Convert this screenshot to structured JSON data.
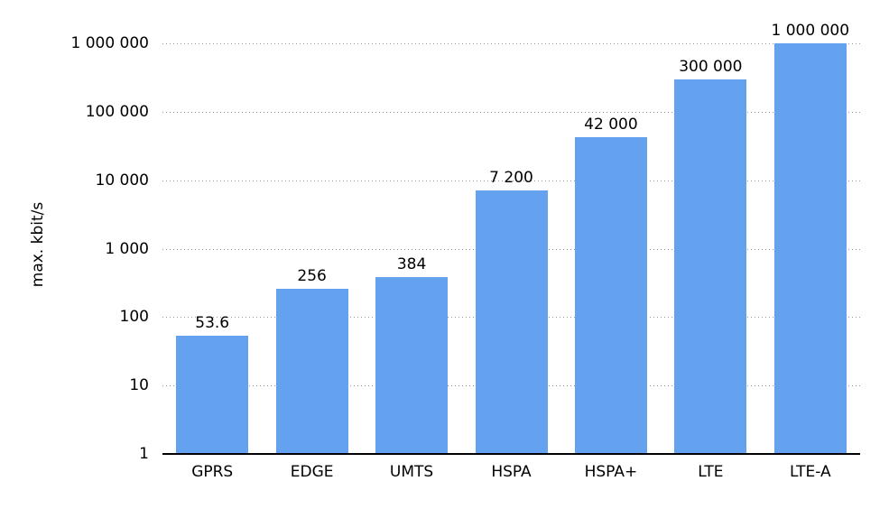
{
  "chart_data": {
    "type": "bar",
    "title": "",
    "xlabel": "",
    "ylabel": "max. kbit/s",
    "yscale": "log",
    "ylim": [
      1,
      1000000
    ],
    "grid": "horizontal-dotted",
    "legend_position": "none",
    "categories": [
      "GPRS",
      "EDGE",
      "UMTS",
      "HSPA",
      "HSPA+",
      "LTE",
      "LTE-A"
    ],
    "values": [
      53.6,
      256,
      384,
      7200,
      42000,
      300000,
      1000000
    ],
    "value_labels": [
      "53.6",
      "256",
      "384",
      "7 200",
      "42 000",
      "300 000",
      "1 000 000"
    ],
    "yticks": [
      1,
      10,
      100,
      1000,
      10000,
      100000,
      1000000
    ],
    "ytick_labels": [
      "1",
      "10",
      "100",
      "1 000",
      "10 000",
      "100 000",
      "1 000 000"
    ],
    "bar_color": "#64A2F0",
    "grid_color": "#999999",
    "axis_color": "#000000",
    "text_color": "#000000"
  }
}
